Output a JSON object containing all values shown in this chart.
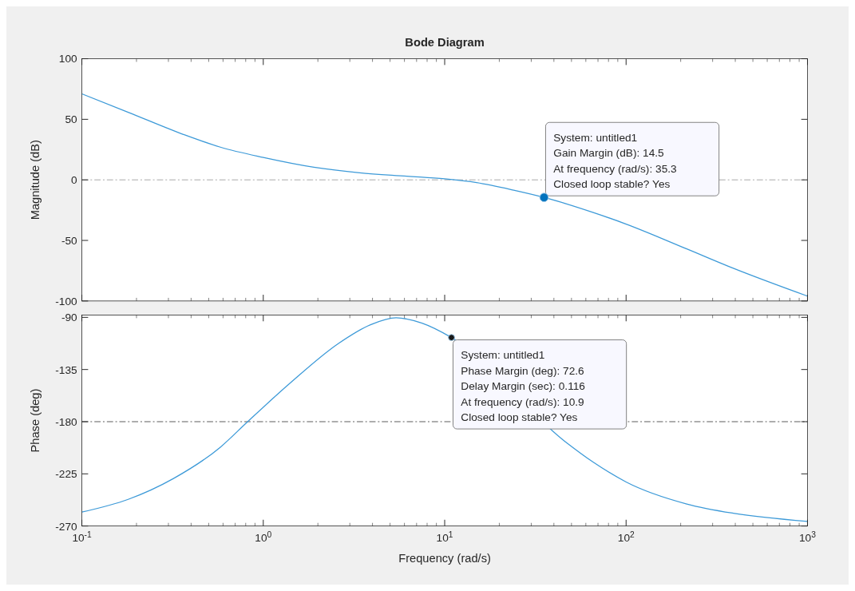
{
  "chart_data": [
    {
      "type": "line",
      "title": "Bode Diagram",
      "ylabel": "Magnitude (dB)",
      "log": "x",
      "tick_labels": "y",
      "grid": false,
      "xlim": [
        0.1,
        1000
      ],
      "xticks": [
        {
          "value": 0.1,
          "label": null
        },
        {
          "value": 1,
          "label": null
        },
        {
          "value": 10,
          "label": null
        },
        {
          "value": 100,
          "label": null
        },
        {
          "value": 1000,
          "label": null
        }
      ],
      "ylim": [
        -100,
        100
      ],
      "yticks": [
        -100,
        -50,
        0,
        50,
        100
      ],
      "series": [
        {
          "color": "#3d9ad8",
          "x": [
            0.1,
            0.18,
            0.36,
            0.58,
            1,
            1.9,
            3.4,
            6.2,
            10,
            15,
            24,
            35.3,
            66,
            100,
            216,
            390,
            1000
          ],
          "values": [
            71,
            55.8,
            37.7,
            27,
            18.5,
            10.4,
            5.8,
            3,
            0.8,
            -2.3,
            -8.5,
            -14.5,
            -27,
            -36.5,
            -57,
            -73,
            -96
          ]
        }
      ],
      "ref_lines": [
        {
          "axis": "y",
          "value": 0,
          "color": "#a6a6a6",
          "line_style": "dashdot"
        }
      ],
      "annotations": [
        {
          "text": "System: untitled1\nGain Margin (dB): 14.5\nAt frequency (rad/s): 35.3\nClosed loop stable? Yes",
          "x": 35.3,
          "y": -14.5
        }
      ]
    },
    {
      "type": "line",
      "xlabel": "Frequency  (rad/s)",
      "ylabel": "Phase (deg)",
      "log": "x",
      "grid": false,
      "xlim": [
        0.1,
        1000
      ],
      "xticks": [
        {
          "value": 0.1,
          "label": "10$^{-1}$"
        },
        {
          "value": 1,
          "label": "10$^{0}$"
        },
        {
          "value": 10,
          "label": "10$^{1}$"
        },
        {
          "value": 100,
          "label": "10$^{2}$"
        },
        {
          "value": 1000,
          "label": "10$^{3}$"
        }
      ],
      "ylim": [
        -270,
        -88
      ],
      "yticks": [
        -270,
        -225,
        -180,
        -135,
        -90
      ],
      "series": [
        {
          "color": "#3d9ad8",
          "x": [
            0.1,
            0.18,
            0.32,
            0.58,
            0.82,
            1.4,
            2.6,
            3.9,
            5.4,
            7.5,
            10.9,
            46,
            66,
            100,
            216,
            390,
            1000
          ],
          "values": [
            -258,
            -247,
            -229,
            -202,
            -180,
            -147,
            -112.5,
            -96.4,
            -90.4,
            -95,
            -107.4,
            -197,
            -215,
            -232,
            -251,
            -259,
            -266
          ]
        }
      ],
      "ref_lines": [
        {
          "axis": "y",
          "value": -180,
          "color": "#595959",
          "line_style": "dashdot"
        }
      ],
      "annotations": [
        {
          "text": "System: untitled1\nPhase Margin (deg): 72.6\nDelay Margin (sec): 0.116\nAt frequency (rad/s): 10.9\nClosed loop stable? Yes",
          "x": 10.9,
          "y": -107.4
        }
      ]
    }
  ]
}
